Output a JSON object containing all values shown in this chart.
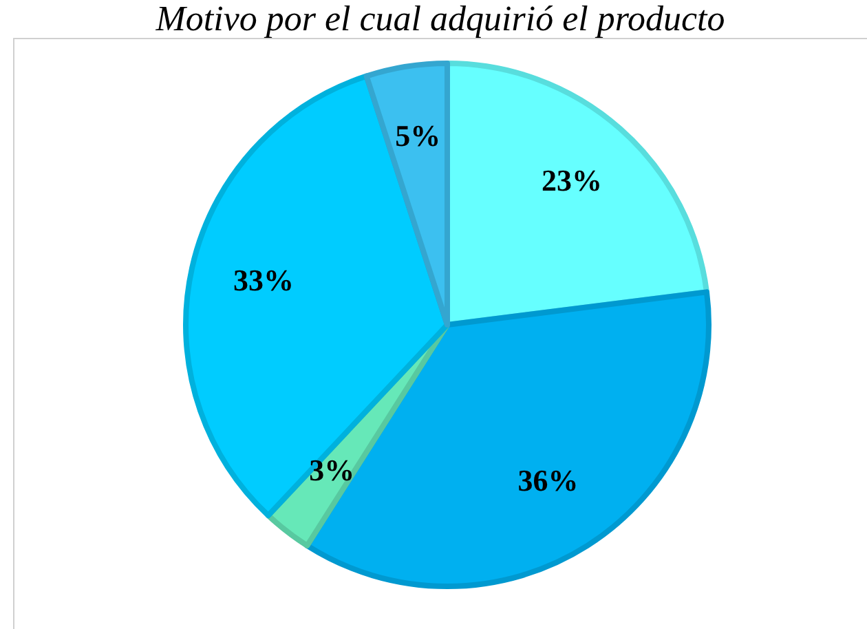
{
  "chart_data": {
    "type": "pie",
    "title": "Motivo por el cual adquirió el producto",
    "categories": [
      null,
      null,
      null,
      null,
      null
    ],
    "values": [
      23,
      36,
      3,
      33,
      5
    ],
    "value_labels": [
      "23%",
      "36%",
      "3%",
      "33%",
      "5%"
    ],
    "colors": [
      "#66ffff",
      "#00b0f0",
      "#66e8b8",
      "#00ccff",
      "#3cc0f0"
    ]
  }
}
